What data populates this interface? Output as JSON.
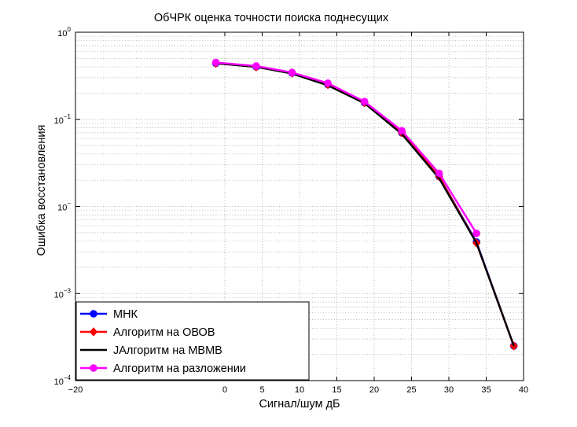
{
  "chart_data": {
    "type": "line",
    "title": "ОбЧРК оценка точности поиска поднесущих",
    "xlabel": "Сигнал/шум дБ",
    "ylabel": "Ошибка восстановления",
    "xlim": [
      -20,
      40
    ],
    "ylim": [
      0.0001,
      1
    ],
    "y_scale": "log",
    "grid": "on",
    "legend_position": "bottom-left",
    "x_ticks": [
      "−20",
      "0",
      "5",
      "10",
      "15",
      "20",
      "25",
      "30",
      "35",
      "40"
    ],
    "x_tick_values": [
      -20,
      0,
      5,
      10,
      15,
      20,
      25,
      30,
      35,
      40
    ],
    "y_ticks": [
      {
        "base": "10",
        "exp": "0",
        "value": 1
      },
      {
        "base": "10",
        "exp": "−1",
        "value": 0.1
      },
      {
        "base": "10",
        "exp": "−",
        "value": 0.01
      },
      {
        "base": "10",
        "exp": "−3",
        "value": 0.001
      },
      {
        "base": "10",
        "exp": "−4",
        "value": 0.0001
      }
    ],
    "series": [
      {
        "name": "МНК",
        "color": "#0000ff",
        "marker": "circle",
        "x": [
          -1.2,
          4.2,
          9,
          13.8,
          18.7,
          23.7,
          28.7,
          33.7,
          38.7
        ],
        "y": [
          0.44,
          0.4,
          0.34,
          0.25,
          0.155,
          0.07,
          0.022,
          0.0039,
          0.00025
        ]
      },
      {
        "name": "Алгоритм  на ОВОВ",
        "color": "#ff0000",
        "marker": "diamond",
        "x": [
          -1.2,
          4.2,
          9,
          13.8,
          18.7,
          23.7,
          28.7,
          33.7,
          38.7
        ],
        "y": [
          0.44,
          0.4,
          0.34,
          0.25,
          0.155,
          0.07,
          0.022,
          0.0038,
          0.00025
        ]
      },
      {
        "name": "JАлгоритм на МВМВ",
        "color": "#000000",
        "marker": "none",
        "x": [
          -1.2,
          4.2,
          9,
          13.8,
          18.7,
          23.7,
          28.7,
          33.7,
          38.7
        ],
        "y": [
          0.44,
          0.4,
          0.335,
          0.245,
          0.153,
          0.068,
          0.021,
          0.0038,
          0.00025
        ]
      },
      {
        "name": "Алгоритм на разложении",
        "color": "#ff00ff",
        "marker": "circle",
        "x": [
          -1.2,
          4.2,
          9,
          13.8,
          18.7,
          23.7,
          28.7,
          33.7
        ],
        "y": [
          0.45,
          0.41,
          0.345,
          0.26,
          0.16,
          0.074,
          0.024,
          0.0049
        ]
      }
    ]
  }
}
